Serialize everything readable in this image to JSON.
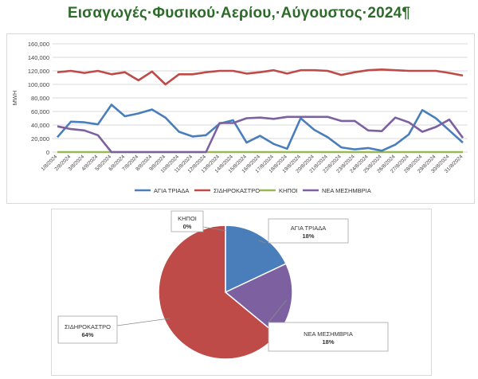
{
  "document": {
    "title": "Εισαγωγές·Φυσικού·Αερίου,·Αύγουστος·2024¶"
  },
  "chart_data": [
    {
      "type": "line",
      "title": "",
      "xlabel": "",
      "ylabel": "MWH",
      "ylim": [
        0,
        160000
      ],
      "yticks": [
        "0",
        "20,000",
        "40,000",
        "60,000",
        "80,000",
        "100,000",
        "120,000",
        "140,000",
        "160,000"
      ],
      "grid": true,
      "legend_position": "bottom",
      "categories": [
        "1/8/2024",
        "2/8/2024",
        "3/8/2024",
        "4/8/2024",
        "5/8/2024",
        "6/8/2024",
        "7/8/2024",
        "8/8/2024",
        "9/8/2024",
        "10/8/2024",
        "11/8/2024",
        "12/8/2024",
        "13/8/2024",
        "14/8/2024",
        "15/8/2024",
        "16/8/2024",
        "17/8/2024",
        "18/8/2024",
        "19/8/2024",
        "20/8/2024",
        "21/8/2024",
        "22/8/2024",
        "23/8/2024",
        "24/8/2024",
        "25/8/2024",
        "26/8/2024",
        "27/8/2024",
        "28/8/2024",
        "29/8/2024",
        "30/8/2024",
        "31/8/2024"
      ],
      "series": [
        {
          "name": "ΑΓΙΑ ΤΡΙΑΔΑ",
          "color": "#4a7ebb",
          "values": [
            22000,
            45000,
            44000,
            41000,
            70000,
            53000,
            57000,
            63000,
            51000,
            30000,
            23000,
            25000,
            42000,
            47000,
            14000,
            24000,
            12000,
            5000,
            50000,
            33000,
            22000,
            7000,
            4000,
            6000,
            2000,
            11000,
            26000,
            62000,
            50000,
            32000,
            14000
          ]
        },
        {
          "name": "ΣΙΔΗΡΟΚΑΣΤΡΟ",
          "color": "#be4b48",
          "values": [
            118000,
            120000,
            117000,
            120000,
            115000,
            118000,
            106000,
            119000,
            100000,
            115000,
            115000,
            118000,
            120000,
            120000,
            116000,
            118000,
            121000,
            116000,
            121000,
            121000,
            120000,
            114000,
            118000,
            121000,
            122000,
            121000,
            120000,
            120000,
            120000,
            117000,
            113000
          ]
        },
        {
          "name": "ΚΗΠΟΙ",
          "color": "#98b954",
          "values": [
            0,
            0,
            0,
            0,
            0,
            0,
            0,
            0,
            0,
            0,
            0,
            0,
            0,
            0,
            0,
            0,
            0,
            0,
            0,
            0,
            0,
            0,
            0,
            0,
            0,
            0,
            0,
            0,
            0,
            0,
            0
          ]
        },
        {
          "name": "ΝΕΑ ΜΕΣΗΜΒΡΙΑ",
          "color": "#7d60a0",
          "values": [
            38000,
            34000,
            32000,
            25000,
            0,
            0,
            0,
            0,
            0,
            0,
            0,
            0,
            43000,
            43000,
            50000,
            51000,
            49000,
            52000,
            52000,
            52000,
            52000,
            46000,
            46000,
            32000,
            31000,
            51000,
            44000,
            30000,
            37000,
            48000,
            21000
          ]
        }
      ]
    },
    {
      "type": "pie",
      "title": "",
      "slices": [
        {
          "name": "ΑΓΙΑ ΤΡΙΑΔΑ",
          "label": "ΑΓΙΑ ΤΡΙΑΔΑ",
          "pct_label": "18%",
          "value": 18,
          "color": "#4a7ebb"
        },
        {
          "name": "ΝΕΑ ΜΕΣΗΜΒΡΙΑ",
          "label": "ΝΕΑ ΜΕΣΗΜΒΡΙΑ",
          "pct_label": "18%",
          "value": 18,
          "color": "#7d60a0"
        },
        {
          "name": "ΣΙΔΗΡΟΚΑΣΤΡΟ",
          "label": "ΣΙΔΗΡΟΚΑΣΤΡΟ",
          "pct_label": "64%",
          "value": 64,
          "color": "#be4b48"
        },
        {
          "name": "ΚΗΠΟΙ",
          "label": "ΚΗΠΟΙ",
          "pct_label": "0%",
          "value": 0,
          "color": "#98b954"
        }
      ]
    }
  ]
}
